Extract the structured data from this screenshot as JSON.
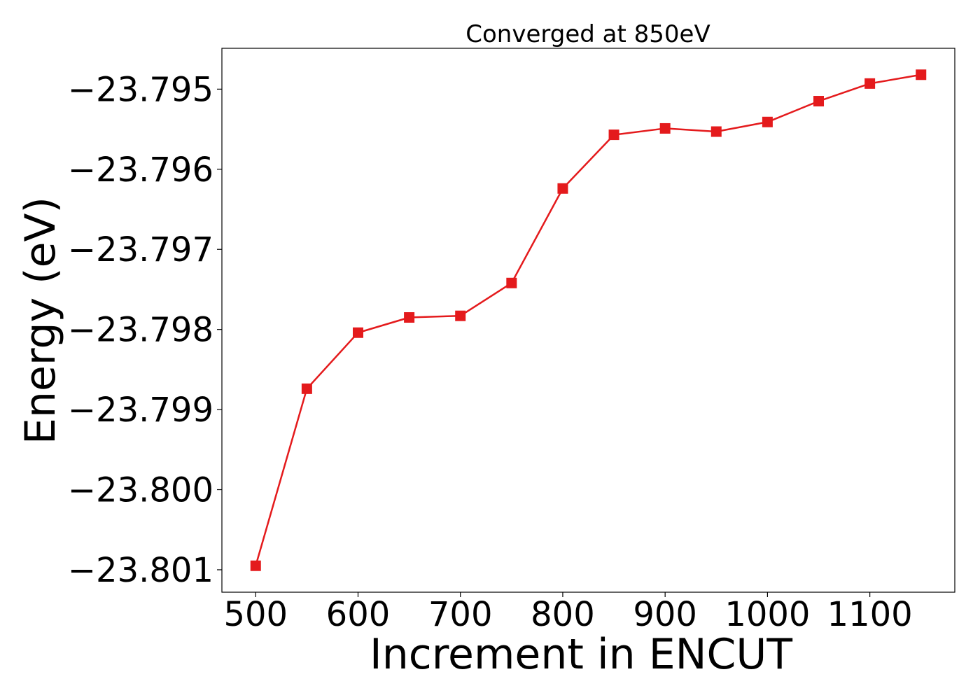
{
  "chart_data": {
    "type": "line",
    "title": "Converged at 850eV",
    "xlabel": "Increment in ENCUT",
    "ylabel": "Energy (eV)",
    "xlim": [
      467,
      1183
    ],
    "ylim": [
      -23.80128,
      -23.79449
    ],
    "xticks": [
      500,
      600,
      700,
      800,
      900,
      1000,
      1100
    ],
    "xtick_labels": [
      "500",
      "600",
      "700",
      "800",
      "900",
      "1000",
      "1100"
    ],
    "yticks": [
      -23.795,
      -23.796,
      -23.797,
      -23.798,
      -23.799,
      -23.8,
      -23.801
    ],
    "ytick_labels": [
      "−23.795",
      "−23.796",
      "−23.797",
      "−23.798",
      "−23.799",
      "−23.800",
      "−23.801"
    ],
    "grid": false,
    "marker": "square",
    "color": "#e41a1c",
    "series": [
      {
        "x": [
          500,
          550,
          600,
          650,
          700,
          750,
          800,
          850,
          900,
          950,
          1000,
          1050,
          1100,
          1150
        ],
        "y": [
          -23.80095,
          -23.79874,
          -23.79804,
          -23.79785,
          -23.79783,
          -23.79742,
          -23.79624,
          -23.79557,
          -23.79549,
          -23.79553,
          -23.79541,
          -23.79515,
          -23.79493,
          -23.79482
        ]
      }
    ]
  }
}
